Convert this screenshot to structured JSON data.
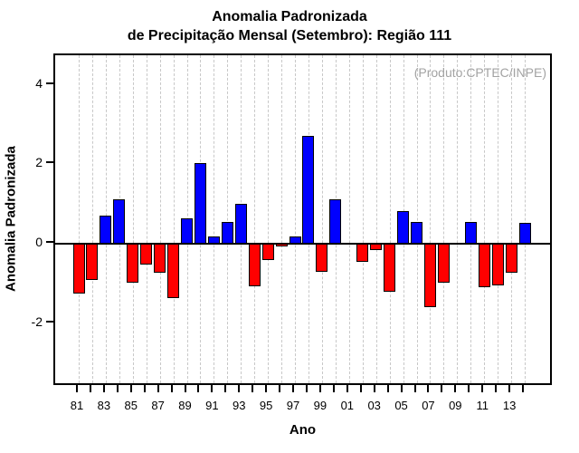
{
  "title": {
    "line1": "Anomalia Padronizada",
    "line2": "de Precipitação Mensal (Setembro): Região 111"
  },
  "annotation": "(Produto:CPTEC/INPE)",
  "chart_data": {
    "type": "bar",
    "title": "Anomalia Padronizada de Precipitação Mensal (Setembro): Região 111",
    "xlabel": "Ano",
    "ylabel": "Anomalia Padronizada",
    "x": [
      "81",
      "82",
      "83",
      "84",
      "85",
      "86",
      "87",
      "88",
      "89",
      "90",
      "91",
      "92",
      "93",
      "94",
      "95",
      "96",
      "97",
      "98",
      "99",
      "00",
      "01",
      "02",
      "03",
      "04",
      "05",
      "06",
      "07",
      "08",
      "09",
      "10",
      "11",
      "12",
      "13",
      "14"
    ],
    "values": [
      -1.25,
      -0.92,
      0.7,
      1.13,
      -0.98,
      -0.53,
      -0.72,
      -1.36,
      0.64,
      2.03,
      0.18,
      0.54,
      1.01,
      -1.08,
      -0.41,
      -0.07,
      0.18,
      2.71,
      -0.71,
      1.12,
      0.0,
      -0.46,
      -0.16,
      -1.21,
      0.83,
      0.54,
      -1.59,
      -0.98,
      0.0,
      0.54,
      -1.1,
      -1.06,
      -0.74,
      0.53
    ],
    "x_tick_labels": [
      "81",
      "83",
      "85",
      "87",
      "89",
      "91",
      "93",
      "95",
      "97",
      "99",
      "01",
      "03",
      "05",
      "07",
      "09",
      "11",
      "13"
    ],
    "y_ticks": [
      4,
      2,
      0,
      -2
    ],
    "ylim": [
      -3.6,
      4.75
    ],
    "grid": "vertical-dashed-per-year",
    "legend_position": "none",
    "annotation": "(Produto:CPTEC/INPE)",
    "colors": {
      "positive_bar": "#0000ff",
      "negative_bar": "#ff0000",
      "bar_outline": "#000000",
      "gridline": "#c8c8c8",
      "annotation_text": "#a3a3a3",
      "axis": "#000000"
    }
  }
}
